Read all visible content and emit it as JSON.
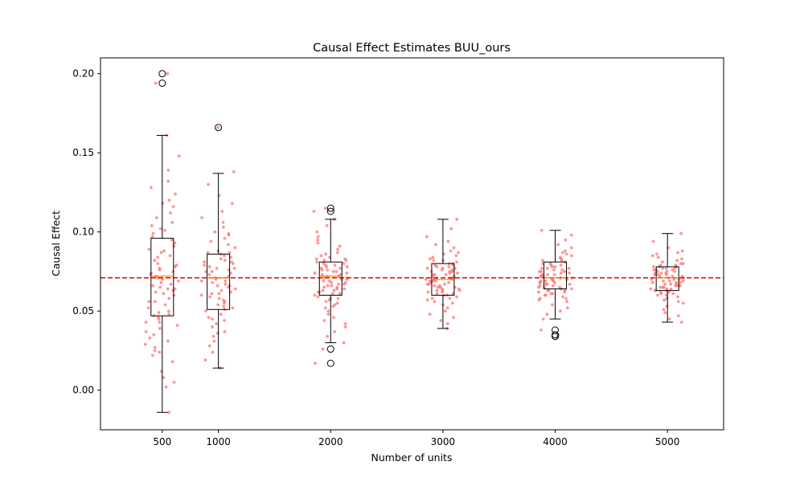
{
  "chart_data": {
    "type": "box",
    "title": "Causal Effect Estimates BUU_ours",
    "xlabel": "Number of units",
    "ylabel": "Causal Effect",
    "ylim": [
      -0.025,
      0.21
    ],
    "xlim": [
      -50,
      5500
    ],
    "yticks": [
      "0.00",
      "0.05",
      "0.10",
      "0.15",
      "0.20"
    ],
    "ytick_values": [
      0.0,
      0.05,
      0.1,
      0.15,
      0.2
    ],
    "categories": [
      "500",
      "1000",
      "2000",
      "3000",
      "4000",
      "5000"
    ],
    "x_positions": [
      500,
      1000,
      2000,
      3000,
      4000,
      5000
    ],
    "reference_line": {
      "value": 0.071,
      "style": "dashed",
      "color": "#e41a1c"
    },
    "boxes": [
      {
        "x": 500,
        "whisker_low": -0.014,
        "q1": 0.047,
        "median": 0.072,
        "q3": 0.096,
        "whisker_high": 0.161,
        "outliers": [
          0.194,
          0.2
        ]
      },
      {
        "x": 1000,
        "whisker_low": 0.014,
        "q1": 0.051,
        "median": 0.071,
        "q3": 0.086,
        "whisker_high": 0.137,
        "outliers": [
          0.166
        ]
      },
      {
        "x": 2000,
        "whisker_low": 0.03,
        "q1": 0.06,
        "median": 0.072,
        "q3": 0.081,
        "whisker_high": 0.108,
        "outliers": [
          0.026,
          0.017,
          0.113,
          0.115
        ]
      },
      {
        "x": 3000,
        "whisker_low": 0.039,
        "q1": 0.06,
        "median": 0.07,
        "q3": 0.08,
        "whisker_high": 0.108,
        "outliers": []
      },
      {
        "x": 4000,
        "whisker_low": 0.045,
        "q1": 0.064,
        "median": 0.071,
        "q3": 0.081,
        "whisker_high": 0.101,
        "outliers": [
          0.034,
          0.035,
          0.038
        ]
      },
      {
        "x": 5000,
        "whisker_low": 0.043,
        "q1": 0.063,
        "median": 0.071,
        "q3": 0.078,
        "whisker_high": 0.099,
        "outliers": []
      }
    ],
    "scatter_groups": [
      {
        "x": 500,
        "spread": 0.13,
        "points": [
          0.2,
          0.194,
          0.161,
          0.148,
          0.139,
          0.132,
          0.128,
          0.124,
          0.12,
          0.116,
          0.112,
          0.109,
          0.106,
          0.104,
          0.101,
          0.099,
          0.097,
          0.095,
          0.093,
          0.091,
          0.089,
          0.087,
          0.085,
          0.084,
          0.082,
          0.08,
          0.079,
          0.078,
          0.077,
          0.076,
          0.075,
          0.074,
          0.073,
          0.072,
          0.071,
          0.07,
          0.069,
          0.068,
          0.067,
          0.066,
          0.065,
          0.064,
          0.063,
          0.062,
          0.061,
          0.06,
          0.058,
          0.056,
          0.054,
          0.052,
          0.05,
          0.049,
          0.048,
          0.047,
          0.046,
          0.045,
          0.043,
          0.041,
          0.039,
          0.037,
          0.035,
          0.033,
          0.031,
          0.029,
          0.027,
          0.025,
          0.024,
          0.022,
          0.018,
          0.012,
          0.008,
          0.005,
          0.002,
          -0.014,
          0.043,
          0.088,
          0.102,
          0.118,
          0.064,
          0.056
        ]
      },
      {
        "x": 1000,
        "spread": 0.13,
        "points": [
          0.166,
          0.138,
          0.13,
          0.123,
          0.118,
          0.113,
          0.109,
          0.106,
          0.103,
          0.1,
          0.098,
          0.096,
          0.094,
          0.092,
          0.09,
          0.088,
          0.087,
          0.086,
          0.085,
          0.084,
          0.083,
          0.082,
          0.081,
          0.08,
          0.079,
          0.078,
          0.077,
          0.076,
          0.075,
          0.074,
          0.073,
          0.072,
          0.071,
          0.07,
          0.069,
          0.068,
          0.067,
          0.066,
          0.065,
          0.064,
          0.063,
          0.062,
          0.061,
          0.06,
          0.059,
          0.058,
          0.057,
          0.056,
          0.055,
          0.054,
          0.053,
          0.052,
          0.051,
          0.05,
          0.048,
          0.046,
          0.044,
          0.042,
          0.04,
          0.037,
          0.034,
          0.031,
          0.028,
          0.024,
          0.019,
          0.014,
          0.077,
          0.069,
          0.061,
          0.087,
          0.099,
          0.045,
          0.036,
          0.066,
          0.075,
          0.081
        ]
      },
      {
        "x": 2000,
        "spread": 0.13,
        "points": [
          0.115,
          0.113,
          0.108,
          0.104,
          0.1,
          0.097,
          0.095,
          0.093,
          0.091,
          0.089,
          0.087,
          0.086,
          0.085,
          0.084,
          0.083,
          0.082,
          0.081,
          0.08,
          0.079,
          0.078,
          0.077,
          0.076,
          0.075,
          0.074,
          0.073,
          0.072,
          0.071,
          0.07,
          0.069,
          0.068,
          0.067,
          0.066,
          0.065,
          0.064,
          0.063,
          0.062,
          0.061,
          0.06,
          0.059,
          0.058,
          0.057,
          0.056,
          0.055,
          0.054,
          0.053,
          0.052,
          0.05,
          0.048,
          0.046,
          0.044,
          0.042,
          0.04,
          0.037,
          0.034,
          0.03,
          0.026,
          0.017,
          0.076,
          0.072,
          0.068,
          0.07,
          0.074,
          0.066,
          0.078,
          0.062,
          0.064,
          0.08,
          0.082,
          0.058,
          0.071,
          0.073,
          0.069,
          0.075,
          0.067,
          0.065,
          0.077,
          0.063,
          0.079,
          0.061,
          0.083
        ]
      },
      {
        "x": 3000,
        "spread": 0.13,
        "points": [
          0.108,
          0.102,
          0.097,
          0.094,
          0.092,
          0.09,
          0.088,
          0.087,
          0.086,
          0.085,
          0.084,
          0.083,
          0.082,
          0.081,
          0.08,
          0.079,
          0.078,
          0.077,
          0.076,
          0.075,
          0.074,
          0.073,
          0.072,
          0.071,
          0.07,
          0.069,
          0.068,
          0.067,
          0.066,
          0.065,
          0.064,
          0.063,
          0.062,
          0.061,
          0.06,
          0.059,
          0.058,
          0.057,
          0.056,
          0.055,
          0.054,
          0.052,
          0.05,
          0.048,
          0.046,
          0.044,
          0.042,
          0.039,
          0.071,
          0.069,
          0.073,
          0.067,
          0.075,
          0.065,
          0.077,
          0.063,
          0.079,
          0.061,
          0.07,
          0.072,
          0.068,
          0.074,
          0.066,
          0.076,
          0.064,
          0.078,
          0.062,
          0.08,
          0.06,
          0.082,
          0.058,
          0.071,
          0.069,
          0.073,
          0.067,
          0.075,
          0.065,
          0.077,
          0.063,
          0.07
        ]
      },
      {
        "x": 4000,
        "spread": 0.13,
        "points": [
          0.101,
          0.098,
          0.095,
          0.092,
          0.09,
          0.088,
          0.087,
          0.086,
          0.085,
          0.084,
          0.083,
          0.082,
          0.081,
          0.08,
          0.079,
          0.078,
          0.077,
          0.076,
          0.075,
          0.074,
          0.073,
          0.072,
          0.071,
          0.07,
          0.069,
          0.068,
          0.067,
          0.066,
          0.065,
          0.064,
          0.063,
          0.062,
          0.061,
          0.06,
          0.059,
          0.058,
          0.057,
          0.056,
          0.054,
          0.052,
          0.05,
          0.048,
          0.045,
          0.038,
          0.035,
          0.034,
          0.071,
          0.069,
          0.073,
          0.067,
          0.075,
          0.065,
          0.077,
          0.063,
          0.07,
          0.072,
          0.068,
          0.074,
          0.066,
          0.076,
          0.064,
          0.078,
          0.062,
          0.08,
          0.06,
          0.082,
          0.058,
          0.071,
          0.069,
          0.073,
          0.067,
          0.075,
          0.065,
          0.077,
          0.063,
          0.079,
          0.061,
          0.07,
          0.072,
          0.068
        ]
      },
      {
        "x": 5000,
        "spread": 0.13,
        "points": [
          0.099,
          0.094,
          0.09,
          0.088,
          0.087,
          0.086,
          0.085,
          0.084,
          0.083,
          0.082,
          0.081,
          0.08,
          0.079,
          0.078,
          0.077,
          0.076,
          0.075,
          0.074,
          0.073,
          0.072,
          0.071,
          0.07,
          0.069,
          0.068,
          0.067,
          0.066,
          0.065,
          0.064,
          0.063,
          0.062,
          0.061,
          0.06,
          0.059,
          0.058,
          0.057,
          0.056,
          0.055,
          0.053,
          0.051,
          0.049,
          0.047,
          0.045,
          0.043,
          0.071,
          0.069,
          0.073,
          0.067,
          0.075,
          0.065,
          0.077,
          0.063,
          0.07,
          0.072,
          0.068,
          0.074,
          0.066,
          0.076,
          0.064,
          0.078,
          0.062,
          0.08,
          0.06,
          0.071,
          0.069,
          0.073,
          0.067,
          0.075,
          0.065,
          0.077,
          0.063,
          0.079,
          0.061,
          0.07,
          0.072,
          0.068,
          0.074,
          0.066,
          0.076,
          0.064,
          0.078
        ]
      }
    ],
    "colors": {
      "scatter": "#ff6b6b",
      "median": "#ff7f0e",
      "box": "#000000",
      "reference": "#e41a1c"
    },
    "grid": false
  }
}
